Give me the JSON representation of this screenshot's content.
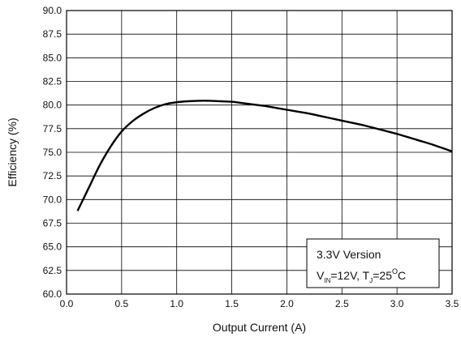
{
  "chart_data": {
    "type": "line",
    "title": "",
    "xlabel": "Output Current (A)",
    "ylabel": "Efficiency (%)",
    "xlim": [
      0.0,
      3.5
    ],
    "ylim": [
      60.0,
      90.0
    ],
    "grid": true,
    "x_ticks": [
      0.0,
      0.5,
      1.0,
      1.5,
      2.0,
      2.5,
      3.0,
      3.5
    ],
    "x_tick_labels": [
      "0.0",
      "0.5",
      "1.0",
      "1.5",
      "2.0",
      "2.5",
      "3.0",
      "3.5"
    ],
    "y_ticks": [
      60.0,
      62.5,
      65.0,
      67.5,
      70.0,
      72.5,
      75.0,
      77.5,
      80.0,
      82.5,
      85.0,
      87.5,
      90.0
    ],
    "y_tick_labels": [
      "60.0",
      "62.5",
      "65.0",
      "67.5",
      "70.0",
      "72.5",
      "75.0",
      "77.5",
      "80.0",
      "82.5",
      "85.0",
      "87.5",
      "90.0"
    ],
    "series": [
      {
        "x": [
          0.1,
          0.2,
          0.3,
          0.4,
          0.5,
          0.6,
          0.7,
          0.8,
          0.9,
          1.0,
          1.1,
          1.2,
          1.3,
          1.4,
          1.5,
          1.6,
          1.7,
          1.8,
          1.9,
          2.0,
          2.1,
          2.2,
          2.3,
          2.4,
          2.5,
          2.6,
          2.7,
          2.8,
          2.9,
          3.0,
          3.1,
          3.2,
          3.3,
          3.4,
          3.5
        ],
        "values": [
          68.8,
          71.2,
          73.6,
          75.6,
          77.2,
          78.3,
          79.1,
          79.7,
          80.1,
          80.3,
          80.4,
          80.45,
          80.45,
          80.4,
          80.35,
          80.2,
          80.05,
          79.9,
          79.7,
          79.5,
          79.3,
          79.1,
          78.85,
          78.6,
          78.35,
          78.1,
          77.85,
          77.55,
          77.25,
          76.95,
          76.6,
          76.25,
          75.9,
          75.5,
          75.1
        ],
        "color": "#000000"
      }
    ],
    "legend": {
      "placement": "bottom-right",
      "line1": "3.3V Version",
      "vin_main": "V",
      "vin_sub": "IN",
      "vin_value": "=12V, T",
      "tj_sub": "J",
      "tj_value": "=25",
      "deg_sup": "O",
      "deg_unit": "C"
    }
  }
}
